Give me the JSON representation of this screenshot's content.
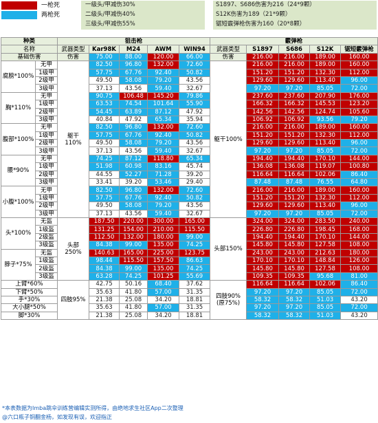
{
  "legend": {
    "one_shot": "一枪死",
    "two_shot": "两枪死",
    "red": "#c00000",
    "blue": "#1fb0e8"
  },
  "notes_left": [
    "一级头/甲减伤30%",
    "二级头/甲减伤40%",
    "三级头/甲减伤55%"
  ],
  "notes_right": [
    "S1897、S686伤害为216（24*9颗）",
    "S12K伤害为189（21*9颗）",
    "锯短霰弹枪伤害为160（20*8颗）"
  ],
  "header": {
    "kind": "种类",
    "sniper": "狙击枪",
    "shotgun": "霰弹枪",
    "name": "名称",
    "weapon_type": "武器类型",
    "damage": "伤害",
    "sniper_guns": [
      "Kar98K",
      "M24",
      "AWM",
      "WIN94"
    ],
    "shotgun_guns": [
      "S1897",
      "S686",
      "S12K",
      "锯短霰弹枪"
    ],
    "base_damage": "基础伤害",
    "sniper_base": [
      "75.00",
      "88.00",
      "120.00",
      "66.00"
    ],
    "shotgun_base": [
      "216.00",
      "216.00",
      "189.00",
      "160.00"
    ]
  },
  "groups": [
    {
      "part": "腐膀*100%",
      "armors": [
        "无甲",
        "1级甲",
        "2级甲",
        "3级甲"
      ],
      "sniper": [
        [
          "82.50",
          "96.80",
          "132.00",
          "72.60"
        ],
        [
          "57.75",
          "67.76",
          "92.40",
          "50.82"
        ],
        [
          "49.50",
          "58.08",
          "79.20",
          "43.56"
        ],
        [
          "37.13",
          "43.56",
          "59.40",
          "32.67"
        ]
      ],
      "sniper_c": [
        [
          "b",
          "b",
          "r",
          "b"
        ],
        [
          "b",
          "b",
          "b",
          "b"
        ],
        [
          "w",
          "b",
          "b",
          "w"
        ],
        [
          "w",
          "w",
          "b",
          "w"
        ]
      ],
      "shot": [
        [
          "216.00",
          "216.00",
          "189.00",
          "160.00"
        ],
        [
          "151.20",
          "151.20",
          "132.30",
          "112.00"
        ],
        [
          "129.60",
          "129.60",
          "113.40",
          "96.00"
        ],
        [
          "97.20",
          "97.20",
          "85.05",
          "72.00"
        ]
      ],
      "shot_c": [
        [
          "r",
          "r",
          "r",
          "r"
        ],
        [
          "r",
          "r",
          "r",
          "r"
        ],
        [
          "r",
          "r",
          "r",
          "b"
        ],
        [
          "b",
          "b",
          "b",
          "b"
        ]
      ]
    },
    {
      "part": "胸*110%",
      "armors": [
        "无甲",
        "1级甲",
        "2级甲",
        "3级甲"
      ],
      "sniper": [
        [
          "90.75",
          "106.48",
          "145.20",
          "79.86"
        ],
        [
          "63.53",
          "74.54",
          "101.64",
          "55.90"
        ],
        [
          "54.45",
          "63.89",
          "87.12",
          "47.92"
        ],
        [
          "40.84",
          "47.92",
          "65.34",
          "35.94"
        ]
      ],
      "sniper_c": [
        [
          "b",
          "r",
          "r",
          "b"
        ],
        [
          "b",
          "b",
          "b",
          "b"
        ],
        [
          "b",
          "b",
          "b",
          "w"
        ],
        [
          "w",
          "w",
          "b",
          "w"
        ]
      ],
      "shot": [
        [
          "237.60",
          "237.60",
          "207.90",
          "176.00"
        ],
        [
          "166.32",
          "166.32",
          "145.53",
          "123.20"
        ],
        [
          "142.56",
          "142.56",
          "124.74",
          "105.60"
        ],
        [
          "106.92",
          "106.92",
          "93.56",
          "79.20"
        ]
      ],
      "shot_c": [
        [
          "r",
          "r",
          "r",
          "r"
        ],
        [
          "r",
          "r",
          "r",
          "r"
        ],
        [
          "r",
          "r",
          "r",
          "r"
        ],
        [
          "r",
          "r",
          "b",
          "b"
        ]
      ]
    },
    {
      "part": "腹部*100%",
      "armors": [
        "无甲",
        "1级甲",
        "2级甲",
        "3级甲"
      ],
      "sniper": [
        [
          "82.50",
          "96.80",
          "132.00",
          "72.60"
        ],
        [
          "57.75",
          "67.76",
          "92.40",
          "50.82"
        ],
        [
          "49.50",
          "58.08",
          "79.20",
          "43.56"
        ],
        [
          "37.13",
          "43.56",
          "59.40",
          "32.67"
        ]
      ],
      "sniper_c": [
        [
          "b",
          "b",
          "r",
          "b"
        ],
        [
          "b",
          "b",
          "b",
          "b"
        ],
        [
          "w",
          "b",
          "b",
          "w"
        ],
        [
          "w",
          "w",
          "b",
          "w"
        ]
      ],
      "shot": [
        [
          "216.00",
          "216.00",
          "189.00",
          "160.00"
        ],
        [
          "151.20",
          "151.20",
          "132.30",
          "112.00"
        ],
        [
          "129.60",
          "129.60",
          "113.40",
          "96.00"
        ],
        [
          "97.20",
          "97.20",
          "85.05",
          "72.00"
        ]
      ],
      "shot_c": [
        [
          "r",
          "r",
          "r",
          "r"
        ],
        [
          "r",
          "r",
          "r",
          "r"
        ],
        [
          "r",
          "r",
          "r",
          "b"
        ],
        [
          "b",
          "b",
          "b",
          "b"
        ]
      ]
    },
    {
      "part": "腰*90%",
      "armors": [
        "无甲",
        "1级甲",
        "2级甲",
        "3级甲"
      ],
      "sniper": [
        [
          "74.25",
          "87.12",
          "118.80",
          "65.34"
        ],
        [
          "51.98",
          "60.98",
          "83.16",
          "45.74"
        ],
        [
          "44.55",
          "52.27",
          "71.28",
          "39.20"
        ],
        [
          "33.41",
          "39.20",
          "53.46",
          "29.40"
        ]
      ],
      "sniper_c": [
        [
          "b",
          "b",
          "r",
          "b"
        ],
        [
          "b",
          "b",
          "b",
          "w"
        ],
        [
          "w",
          "b",
          "b",
          "w"
        ],
        [
          "w",
          "w",
          "b",
          "w"
        ]
      ],
      "shot": [
        [
          "194.40",
          "194.40",
          "170.10",
          "144.00"
        ],
        [
          "136.08",
          "136.08",
          "119.07",
          "100.80"
        ],
        [
          "116.64",
          "116.64",
          "102.06",
          "86.40"
        ],
        [
          "87.48",
          "87.48",
          "76.55",
          "64.80"
        ]
      ],
      "shot_c": [
        [
          "r",
          "r",
          "r",
          "r"
        ],
        [
          "r",
          "r",
          "r",
          "r"
        ],
        [
          "r",
          "r",
          "r",
          "b"
        ],
        [
          "b",
          "b",
          "b",
          "b"
        ]
      ]
    },
    {
      "part": "小腹*100%",
      "armors": [
        "无甲",
        "1级甲",
        "2级甲",
        "3级甲"
      ],
      "sniper": [
        [
          "82.50",
          "96.80",
          "132.00",
          "72.60"
        ],
        [
          "57.75",
          "67.76",
          "92.40",
          "50.82"
        ],
        [
          "49.50",
          "58.08",
          "79.20",
          "43.56"
        ],
        [
          "37.13",
          "43.56",
          "59.40",
          "32.67"
        ]
      ],
      "sniper_c": [
        [
          "b",
          "b",
          "r",
          "b"
        ],
        [
          "b",
          "b",
          "b",
          "b"
        ],
        [
          "w",
          "b",
          "b",
          "w"
        ],
        [
          "w",
          "w",
          "b",
          "w"
        ]
      ],
      "shot": [
        [
          "216.00",
          "216.00",
          "189.00",
          "160.00"
        ],
        [
          "151.20",
          "151.20",
          "132.30",
          "112.00"
        ],
        [
          "129.60",
          "129.60",
          "113.40",
          "96.00"
        ],
        [
          "97.20",
          "97.20",
          "85.05",
          "72.00"
        ]
      ],
      "shot_c": [
        [
          "r",
          "r",
          "r",
          "r"
        ],
        [
          "r",
          "r",
          "r",
          "r"
        ],
        [
          "r",
          "r",
          "r",
          "b"
        ],
        [
          "b",
          "b",
          "b",
          "b"
        ]
      ]
    },
    {
      "part": "头*100%",
      "armors": [
        "无盔",
        "1级盔",
        "2级盔",
        "3级盔"
      ],
      "sniper": [
        [
          "187.50",
          "220.00",
          "300.00",
          "165.00"
        ],
        [
          "131.25",
          "154.00",
          "210.00",
          "115.50"
        ],
        [
          "112.50",
          "132.00",
          "180.00",
          "99.00"
        ],
        [
          "84.38",
          "99.00",
          "135.00",
          "74.25"
        ]
      ],
      "sniper_c": [
        [
          "r",
          "r",
          "r",
          "r"
        ],
        [
          "r",
          "r",
          "r",
          "r"
        ],
        [
          "r",
          "r",
          "r",
          "b"
        ],
        [
          "b",
          "b",
          "r",
          "b"
        ]
      ],
      "shot": [
        [
          "324.00",
          "324.00",
          "283.50",
          "240.00"
        ],
        [
          "226.80",
          "226.80",
          "198.45",
          "168.00"
        ],
        [
          "194.40",
          "194.40",
          "170.10",
          "144.00"
        ],
        [
          "145.80",
          "145.80",
          "127.58",
          "108.00"
        ]
      ],
      "shot_c": [
        [
          "r",
          "r",
          "r",
          "r"
        ],
        [
          "r",
          "r",
          "r",
          "r"
        ],
        [
          "r",
          "r",
          "r",
          "r"
        ],
        [
          "r",
          "r",
          "r",
          "r"
        ]
      ]
    },
    {
      "part": "脖子*75%",
      "armors": [
        "无盔",
        "1级盔",
        "2级盔",
        "3级盔"
      ],
      "sniper": [
        [
          "140.63",
          "165.00",
          "225.00",
          "123.75"
        ],
        [
          "98.44",
          "115.50",
          "157.50",
          "86.63"
        ],
        [
          "84.38",
          "99.00",
          "135.00",
          "74.25"
        ],
        [
          "63.28",
          "74.25",
          "101.25",
          "55.69"
        ]
      ],
      "sniper_c": [
        [
          "r",
          "r",
          "r",
          "r"
        ],
        [
          "b",
          "r",
          "r",
          "b"
        ],
        [
          "b",
          "b",
          "r",
          "b"
        ],
        [
          "b",
          "b",
          "r",
          "b"
        ]
      ],
      "shot": [
        [
          "243.00",
          "243.00",
          "212.63",
          "180.00"
        ],
        [
          "170.10",
          "170.10",
          "148.84",
          "126.00"
        ],
        [
          "145.80",
          "145.80",
          "127.58",
          "108.00"
        ],
        [
          "109.35",
          "109.35",
          "95.68",
          "81.00"
        ]
      ],
      "shot_c": [
        [
          "r",
          "r",
          "r",
          "r"
        ],
        [
          "r",
          "r",
          "r",
          "r"
        ],
        [
          "r",
          "r",
          "r",
          "r"
        ],
        [
          "r",
          "r",
          "b",
          "b"
        ]
      ]
    }
  ],
  "sniper_mid": {
    "torso": "躯干",
    "torso_pct": "110%",
    "head": "头部",
    "head_pct": "250%",
    "limb": "四肢95%"
  },
  "shotgun_mid": {
    "torso": "躯干100%",
    "head": "头部150%",
    "limb": "四肢90%",
    "limb2": "(原75%)"
  },
  "limbs": [
    {
      "part": "上臂*60%",
      "sniper": [
        "42.75",
        "50.16",
        "68.40",
        "37.62"
      ],
      "shot": [
        "116.64",
        "116.64",
        "102.06",
        "86.40"
      ],
      "sniper_c": [
        "w",
        "w",
        "b",
        "w"
      ],
      "shot_c": [
        "r",
        "r",
        "r",
        "b"
      ]
    },
    {
      "part": "下臂*50%",
      "sniper": [
        "35.63",
        "41.80",
        "57.00",
        "31.35"
      ],
      "shot": [
        "97.20",
        "97.20",
        "85.05",
        "72.00"
      ],
      "sniper_c": [
        "w",
        "w",
        "b",
        "w"
      ],
      "shot_c": [
        "b",
        "b",
        "b",
        "b"
      ]
    },
    {
      "part": "手*30%",
      "sniper": [
        "21.38",
        "25.08",
        "34.20",
        "18.81"
      ],
      "shot": [
        "58.32",
        "58.32",
        "51.03",
        "43.20"
      ],
      "sniper_c": [
        "w",
        "w",
        "w",
        "w"
      ],
      "shot_c": [
        "b",
        "b",
        "b",
        "w"
      ]
    },
    {
      "part": "大小腿*50%",
      "sniper": [
        "35.63",
        "41.80",
        "57.00",
        "31.35"
      ],
      "shot": [
        "97.20",
        "97.20",
        "85.05",
        "72.00"
      ],
      "sniper_c": [
        "w",
        "w",
        "b",
        "w"
      ],
      "shot_c": [
        "b",
        "b",
        "b",
        "b"
      ]
    },
    {
      "part": "脚*30%",
      "sniper": [
        "21.38",
        "25.08",
        "34.20",
        "18.81"
      ],
      "shot": [
        "58.32",
        "58.32",
        "51.03",
        "43.20"
      ],
      "sniper_c": [
        "w",
        "w",
        "w",
        "w"
      ],
      "shot_c": [
        "b",
        "b",
        "b",
        "w"
      ]
    }
  ],
  "footer": [
    "*本表数据为Imba跳伞训练营编辑实测所得，由绝地求生社区App二次整理",
    "@六口瓶子铜翻金杨，如发现有误，欢迎指正"
  ]
}
